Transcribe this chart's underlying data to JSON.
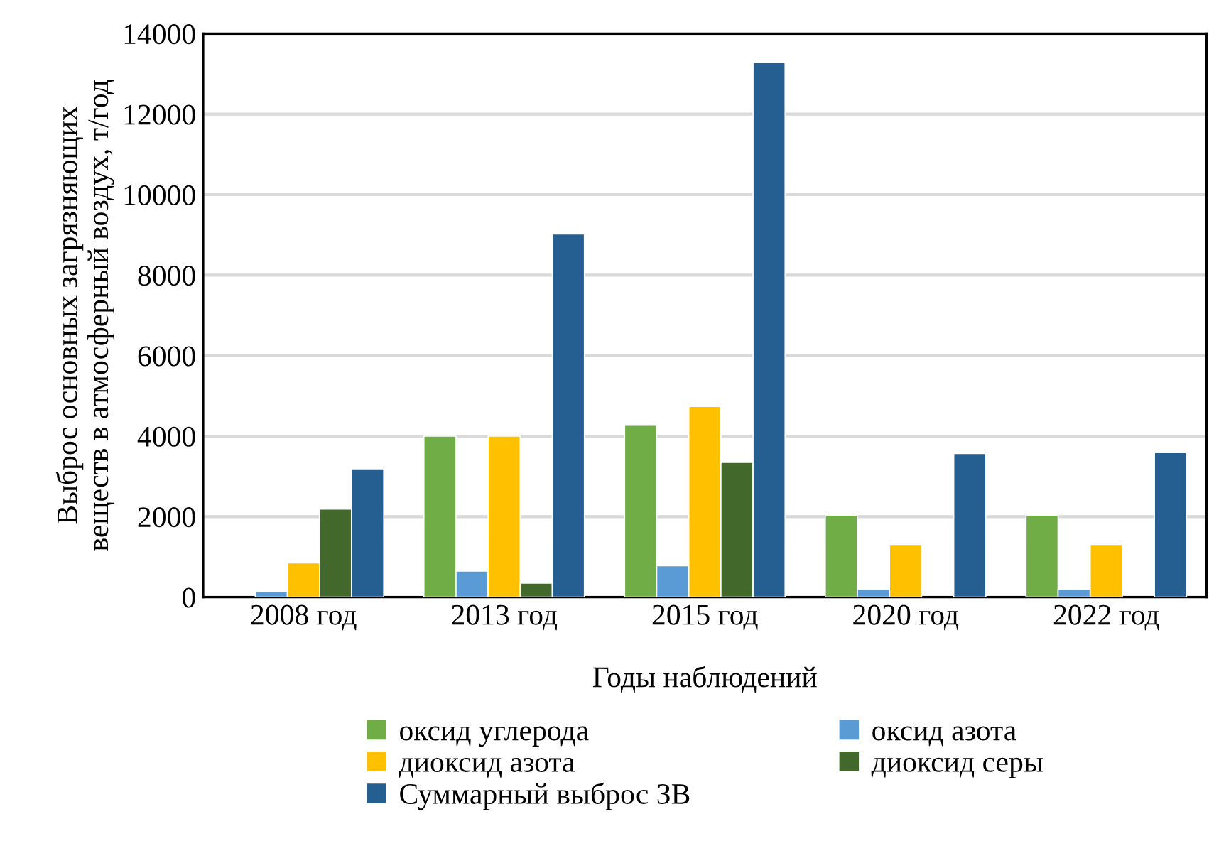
{
  "chart_data": {
    "type": "bar",
    "xlabel": "Годы наблюдений",
    "ylabel": "Выброс основных загрязняющих\nвеществ в атмосферный воздух, т/год",
    "categories": [
      "2008 год",
      "2013 год",
      "2015 год",
      "2020 год",
      "2022 год"
    ],
    "series": [
      {
        "name": "оксид углерода",
        "color": "#70ad47",
        "values": [
          null,
          4000,
          4270,
          2040,
          2040
        ]
      },
      {
        "name": "оксид азота",
        "color": "#5b9bd5",
        "values": [
          150,
          650,
          780,
          200,
          200
        ]
      },
      {
        "name": "диоксид азота",
        "color": "#ffc000",
        "values": [
          850,
          4000,
          4740,
          1310,
          1310
        ]
      },
      {
        "name": "диоксид серы",
        "color": "#43682b",
        "values": [
          2190,
          350,
          3350,
          null,
          null
        ]
      },
      {
        "name": "Суммарный выброс ЗВ",
        "color": "#255e91",
        "values": [
          3190,
          9020,
          13290,
          3570,
          3590
        ]
      }
    ],
    "ylim": [
      0,
      14000
    ],
    "yticks": [
      0,
      2000,
      4000,
      6000,
      8000,
      10000,
      12000,
      14000
    ],
    "grid": "y",
    "legend": "bottom"
  }
}
